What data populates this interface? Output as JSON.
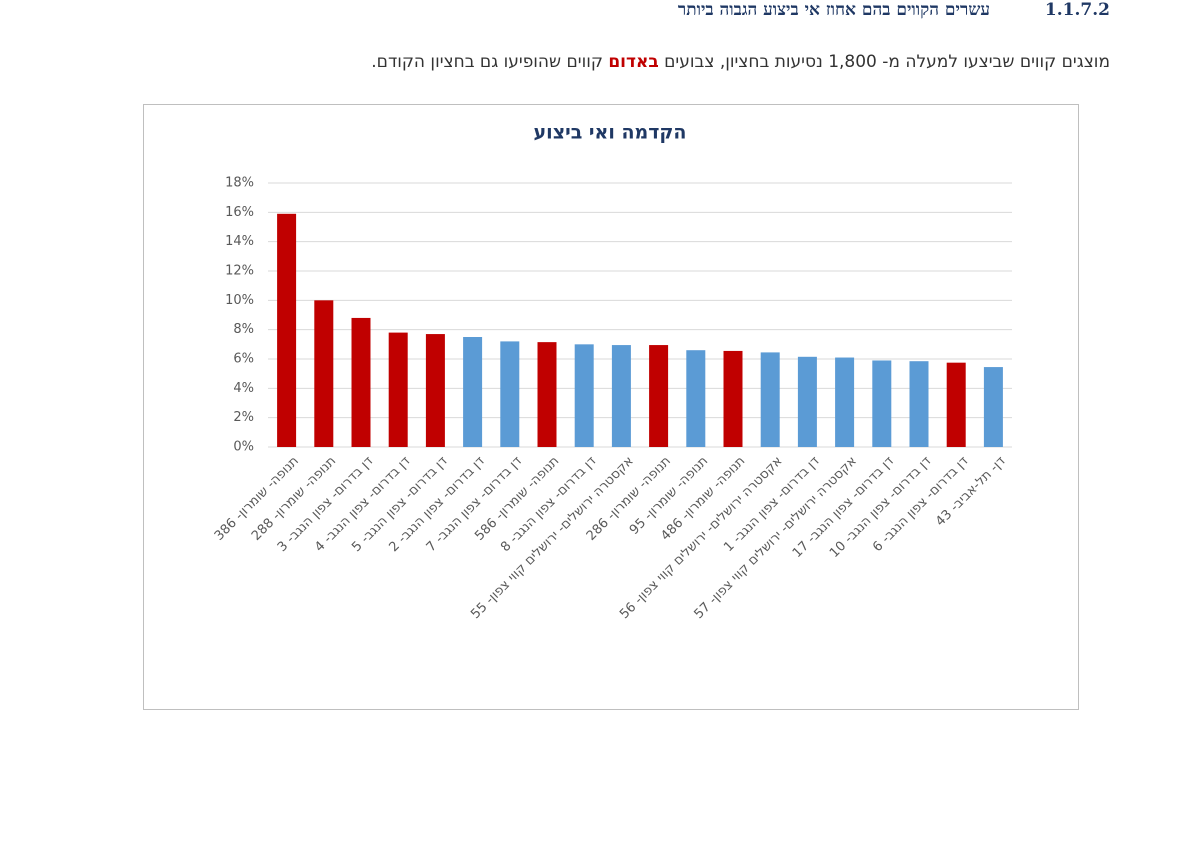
{
  "header": {
    "number": "1.1.7.2",
    "title": "עשרים הקווים בהם אחוז אי ביצוע הגבוה ביותר"
  },
  "paragraph": {
    "before": "מוצגים קווים שביצעו למעלה מ- 1,800 נסיעות בחציון, צבועים",
    "highlight": "באדום",
    "after": "קווים שהופיעו גם בחציון הקודם."
  },
  "chart_data": {
    "type": "bar",
    "title": "הקדמה ואי ביצוע",
    "categories": [
      "תנופה- שומרון- 386",
      "תנופה- שומרון- 288",
      "דן בדרום- צפון הנגב- 3",
      "דן בדרום- צפון הנגב- 4",
      "דן בדרום- צפון הנגב- 5",
      "דן בדרום- צפון הנגב- 2",
      "דן בדרום- צפון הנגב- 7",
      "תנופה- שומרון- 586",
      "דן בדרום- צפון הנגב- 8",
      "אקסטרה ירושלים- ירושלים קווי צפון- 55",
      "תנופה- שומרון- 286",
      "תנופה- שומרון- 95",
      "תנופה- שומרון- 486",
      "אקסטרה ירושלים- ירושלים קווי צפון- 56",
      "דן בדרום- צפון הנגב- 1",
      "אקסטרה ירושלים- ירושלים קווי צפון- 57",
      "דן בדרום- צפון הנגב- 17",
      "דן בדרום- צפון הנגב- 10",
      "דן בדרום- צפון הנגב- 6",
      "דן- תל-אביב- 43"
    ],
    "values": [
      15.9,
      10.0,
      8.8,
      7.8,
      7.7,
      7.5,
      7.2,
      7.15,
      7.0,
      6.95,
      6.95,
      6.6,
      6.55,
      6.45,
      6.15,
      6.1,
      5.9,
      5.85,
      5.75,
      5.45
    ],
    "colors": [
      "#c00000",
      "#c00000",
      "#c00000",
      "#c00000",
      "#c00000",
      "#5b9bd5",
      "#5b9bd5",
      "#c00000",
      "#5b9bd5",
      "#5b9bd5",
      "#c00000",
      "#5b9bd5",
      "#c00000",
      "#5b9bd5",
      "#5b9bd5",
      "#5b9bd5",
      "#5b9bd5",
      "#5b9bd5",
      "#c00000",
      "#5b9bd5"
    ],
    "ylim": [
      0,
      18
    ],
    "yticks": [
      {
        "value": 0,
        "label": "0%"
      },
      {
        "value": 2,
        "label": "2%"
      },
      {
        "value": 4,
        "label": "4%"
      },
      {
        "value": 6,
        "label": "6%"
      },
      {
        "value": 8,
        "label": "8%"
      },
      {
        "value": 10,
        "label": "10%"
      },
      {
        "value": 12,
        "label": "12%"
      },
      {
        "value": 14,
        "label": "14%"
      },
      {
        "value": 16,
        "label": "16%"
      },
      {
        "value": 18,
        "label": "18%"
      }
    ],
    "grid": true
  }
}
